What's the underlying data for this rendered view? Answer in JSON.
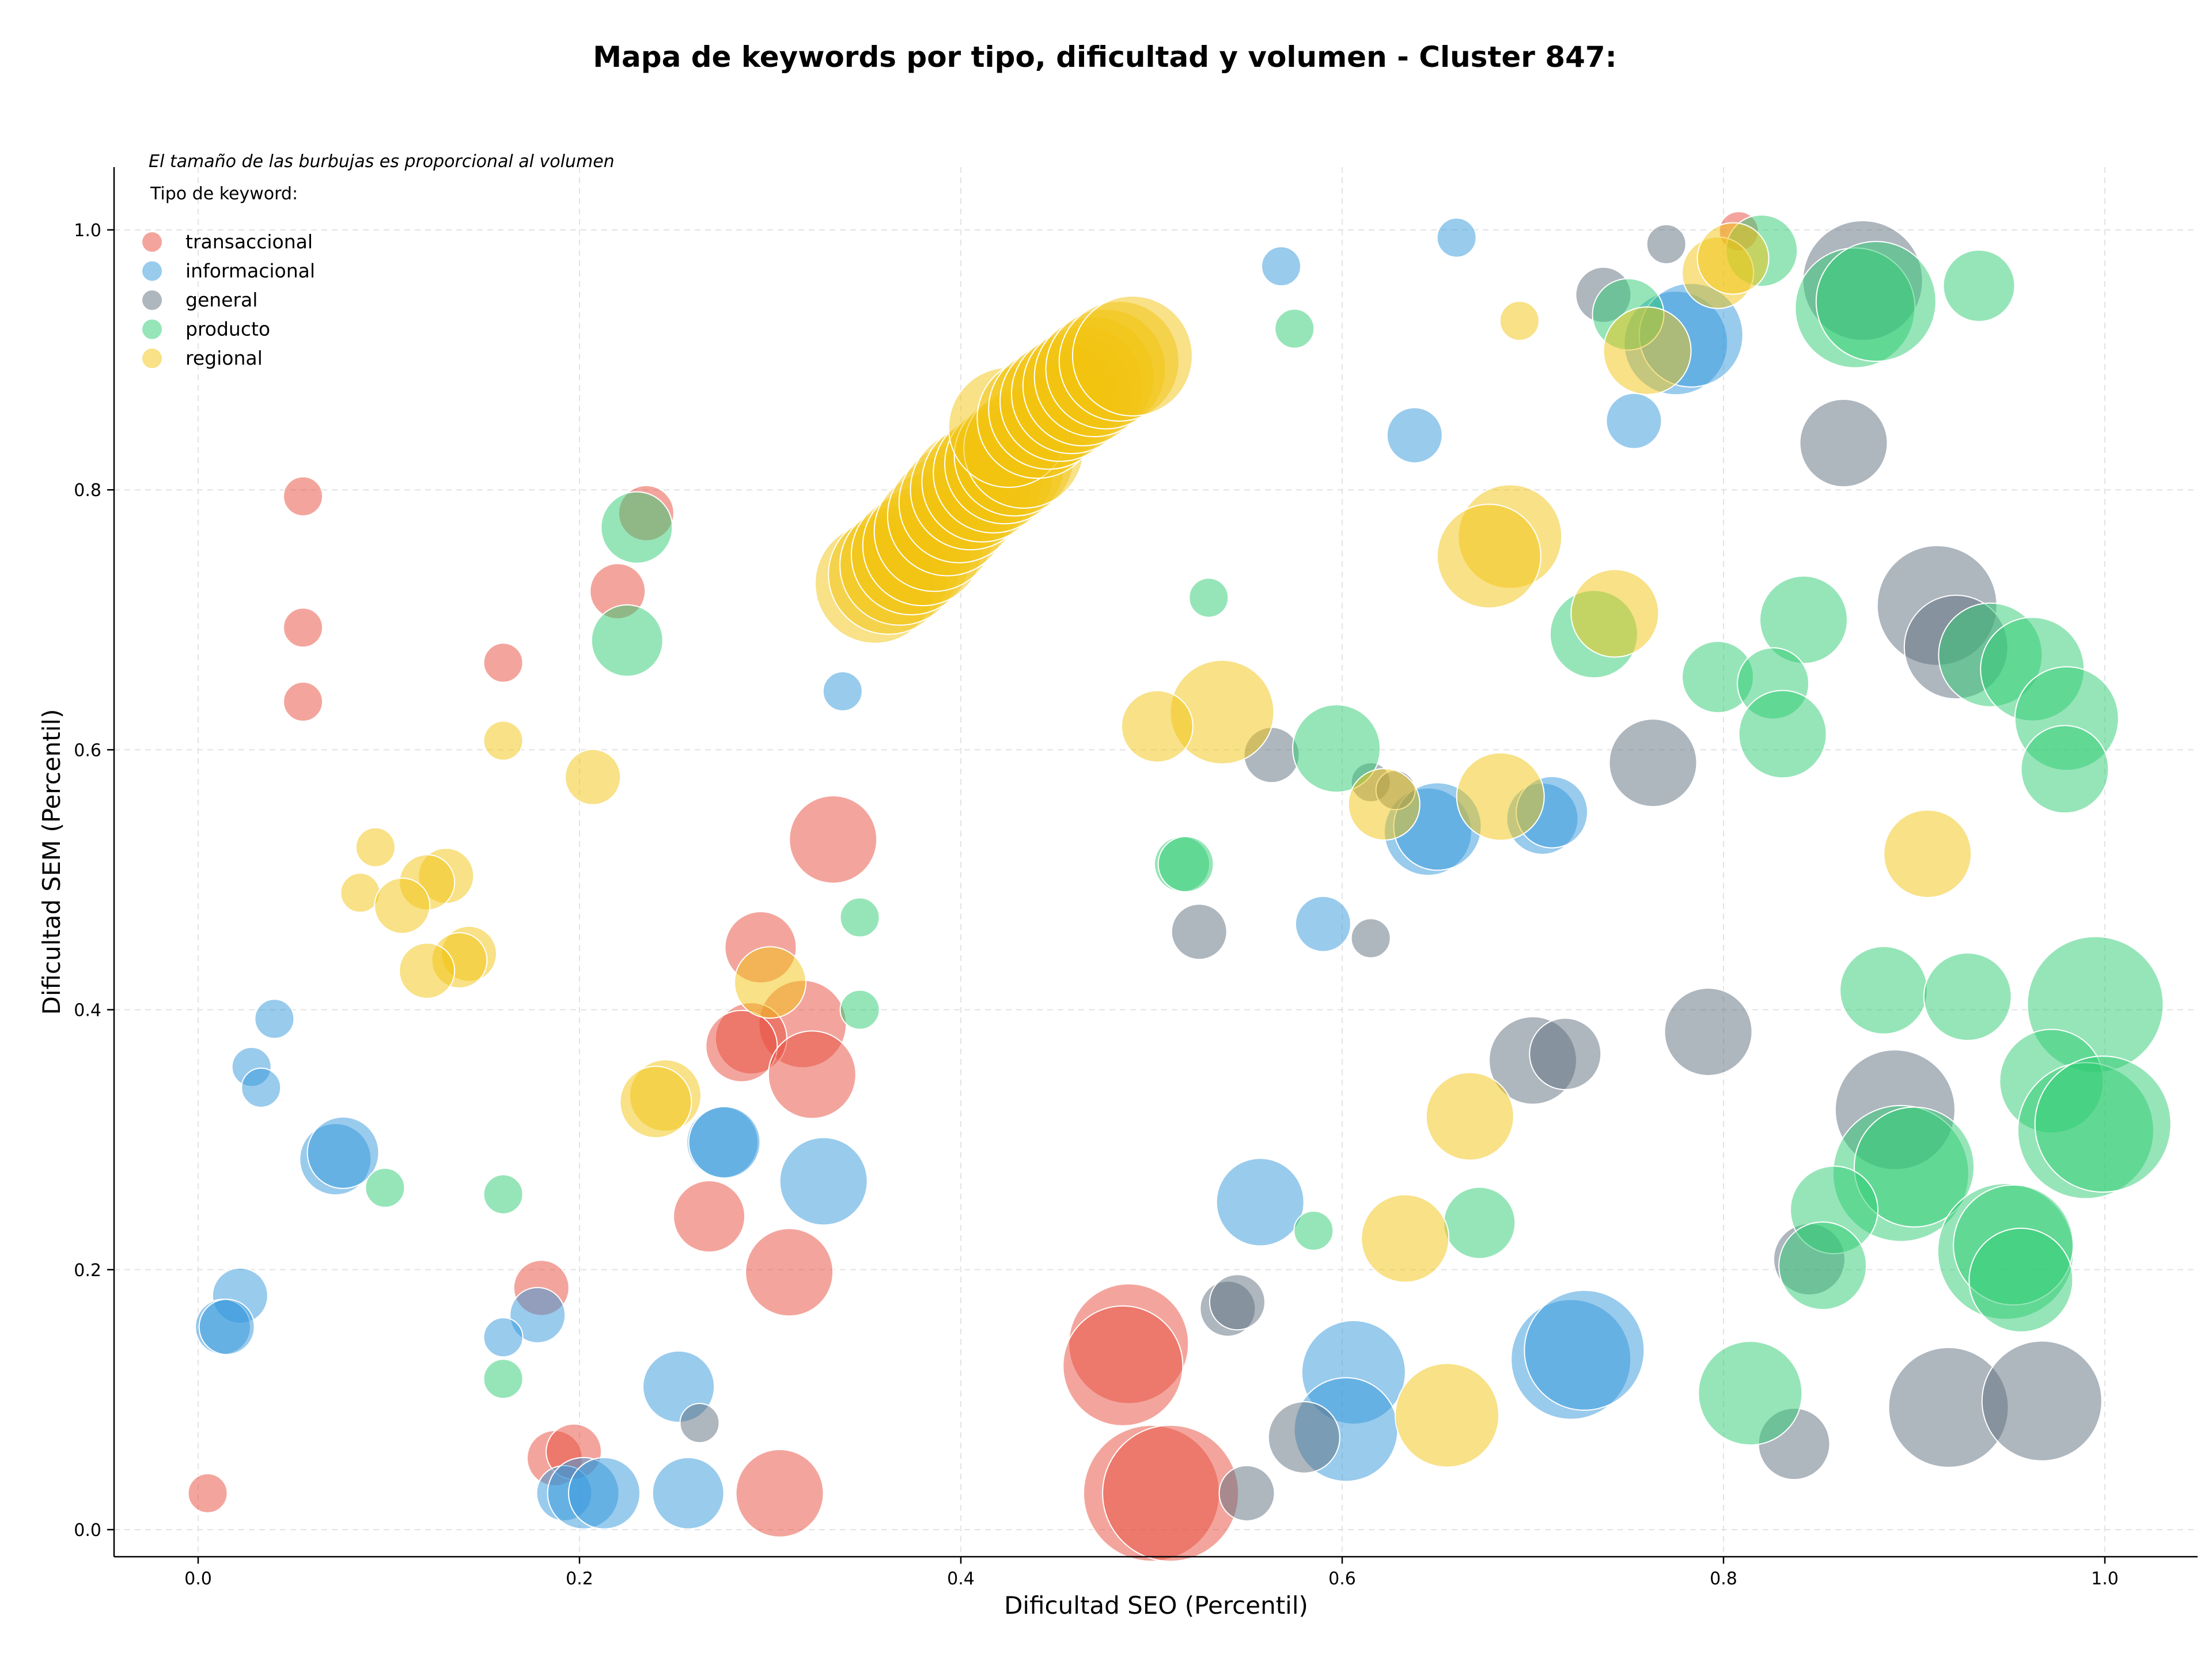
{
  "chart_data": {
    "type": "scatter",
    "title": "Mapa de keywords por tipo, dificultad y volumen - Cluster 847:",
    "xlabel": "Dificultad SEO (Percentil)",
    "ylabel": "Dificultad SEM (Percentil)",
    "xlim": [
      -0.04,
      1.05
    ],
    "ylim": [
      -0.02,
      1.05
    ],
    "xticks": [
      0.0,
      0.2,
      0.4,
      0.6,
      0.8,
      1.0
    ],
    "yticks": [
      0.0,
      0.2,
      0.4,
      0.6,
      0.8,
      1.0
    ],
    "xtick_labels": [
      "0.0",
      "0.2",
      "0.4",
      "0.6",
      "0.8",
      "1.0"
    ],
    "ytick_labels": [
      "0.0",
      "0.2",
      "0.4",
      "0.6",
      "0.8",
      "1.0"
    ],
    "grid": true,
    "note": "El tamaño de las burbujas es proporcional al volumen",
    "legend": {
      "title": "Tipo de keyword:",
      "placement": "top-left"
    },
    "series": [
      {
        "name": "transaccional",
        "color": "#e74c3c",
        "points": [
          {
            "x": 0.055,
            "y": 0.795,
            "size": 1
          },
          {
            "x": 0.055,
            "y": 0.694,
            "size": 1
          },
          {
            "x": 0.055,
            "y": 0.637,
            "size": 1
          },
          {
            "x": 0.16,
            "y": 0.667,
            "size": 1
          },
          {
            "x": 0.235,
            "y": 0.782,
            "size": 2
          },
          {
            "x": 0.22,
            "y": 0.722,
            "size": 2
          },
          {
            "x": 0.005,
            "y": 0.028,
            "size": 1
          },
          {
            "x": 0.18,
            "y": 0.186,
            "size": 2
          },
          {
            "x": 0.187,
            "y": 0.055,
            "size": 2
          },
          {
            "x": 0.197,
            "y": 0.06,
            "size": 2
          },
          {
            "x": 0.333,
            "y": 0.531,
            "size": 4
          },
          {
            "x": 0.295,
            "y": 0.448,
            "size": 3
          },
          {
            "x": 0.317,
            "y": 0.389,
            "size": 4
          },
          {
            "x": 0.29,
            "y": 0.378,
            "size": 3
          },
          {
            "x": 0.285,
            "y": 0.372,
            "size": 3
          },
          {
            "x": 0.322,
            "y": 0.35,
            "size": 4
          },
          {
            "x": 0.268,
            "y": 0.241,
            "size": 3
          },
          {
            "x": 0.31,
            "y": 0.198,
            "size": 4
          },
          {
            "x": 0.305,
            "y": 0.028,
            "size": 4
          },
          {
            "x": 0.488,
            "y": 0.143,
            "size": 6
          },
          {
            "x": 0.485,
            "y": 0.126,
            "size": 6
          },
          {
            "x": 0.5,
            "y": 0.028,
            "size": 7
          },
          {
            "x": 0.51,
            "y": 0.028,
            "size": 7
          },
          {
            "x": 0.808,
            "y": 0.999,
            "size": 1
          }
        ]
      },
      {
        "name": "informacional",
        "color": "#3498db",
        "points": [
          {
            "x": 0.568,
            "y": 0.972,
            "size": 1
          },
          {
            "x": 0.66,
            "y": 0.994,
            "size": 1
          },
          {
            "x": 0.638,
            "y": 0.842,
            "size": 2
          },
          {
            "x": 0.753,
            "y": 0.853,
            "size": 2
          },
          {
            "x": 0.775,
            "y": 0.913,
            "size": 5
          },
          {
            "x": 0.783,
            "y": 0.919,
            "size": 5
          },
          {
            "x": 0.338,
            "y": 0.645,
            "size": 1
          },
          {
            "x": 0.04,
            "y": 0.393,
            "size": 1
          },
          {
            "x": 0.028,
            "y": 0.356,
            "size": 1
          },
          {
            "x": 0.033,
            "y": 0.34,
            "size": 1
          },
          {
            "x": 0.072,
            "y": 0.285,
            "size": 3
          },
          {
            "x": 0.076,
            "y": 0.29,
            "size": 3
          },
          {
            "x": 0.022,
            "y": 0.18,
            "size": 2
          },
          {
            "x": 0.013,
            "y": 0.156,
            "size": 2
          },
          {
            "x": 0.015,
            "y": 0.156,
            "size": 2
          },
          {
            "x": 0.178,
            "y": 0.165,
            "size": 2
          },
          {
            "x": 0.16,
            "y": 0.148,
            "size": 1
          },
          {
            "x": 0.275,
            "y": 0.298,
            "size": 3
          },
          {
            "x": 0.276,
            "y": 0.298,
            "size": 3
          },
          {
            "x": 0.328,
            "y": 0.268,
            "size": 4
          },
          {
            "x": 0.252,
            "y": 0.11,
            "size": 3
          },
          {
            "x": 0.192,
            "y": 0.028,
            "size": 2
          },
          {
            "x": 0.202,
            "y": 0.028,
            "size": 3
          },
          {
            "x": 0.213,
            "y": 0.028,
            "size": 3
          },
          {
            "x": 0.257,
            "y": 0.028,
            "size": 3
          },
          {
            "x": 0.59,
            "y": 0.466,
            "size": 2
          },
          {
            "x": 0.557,
            "y": 0.252,
            "size": 4
          },
          {
            "x": 0.606,
            "y": 0.121,
            "size": 5
          },
          {
            "x": 0.602,
            "y": 0.077,
            "size": 5
          },
          {
            "x": 0.645,
            "y": 0.537,
            "size": 4
          },
          {
            "x": 0.65,
            "y": 0.541,
            "size": 4
          },
          {
            "x": 0.705,
            "y": 0.547,
            "size": 3
          },
          {
            "x": 0.71,
            "y": 0.552,
            "size": 3
          },
          {
            "x": 0.72,
            "y": 0.131,
            "size": 6
          },
          {
            "x": 0.727,
            "y": 0.138,
            "size": 6
          }
        ]
      },
      {
        "name": "general",
        "color": "#5d6d7e",
        "points": [
          {
            "x": 0.77,
            "y": 0.989,
            "size": 1
          },
          {
            "x": 0.737,
            "y": 0.95,
            "size": 2
          },
          {
            "x": 0.873,
            "y": 0.961,
            "size": 6
          },
          {
            "x": 0.863,
            "y": 0.836,
            "size": 4
          },
          {
            "x": 0.912,
            "y": 0.711,
            "size": 6
          },
          {
            "x": 0.922,
            "y": 0.679,
            "size": 5
          },
          {
            "x": 0.763,
            "y": 0.59,
            "size": 4
          },
          {
            "x": 0.563,
            "y": 0.596,
            "size": 2
          },
          {
            "x": 0.615,
            "y": 0.575,
            "size": 1
          },
          {
            "x": 0.628,
            "y": 0.569,
            "size": 1
          },
          {
            "x": 0.525,
            "y": 0.46,
            "size": 2
          },
          {
            "x": 0.615,
            "y": 0.455,
            "size": 1
          },
          {
            "x": 0.7,
            "y": 0.361,
            "size": 4
          },
          {
            "x": 0.717,
            "y": 0.366,
            "size": 3
          },
          {
            "x": 0.792,
            "y": 0.383,
            "size": 4
          },
          {
            "x": 0.89,
            "y": 0.323,
            "size": 6
          },
          {
            "x": 0.845,
            "y": 0.208,
            "size": 3
          },
          {
            "x": 0.54,
            "y": 0.17,
            "size": 2
          },
          {
            "x": 0.545,
            "y": 0.175,
            "size": 2
          },
          {
            "x": 0.263,
            "y": 0.082,
            "size": 1
          },
          {
            "x": 0.58,
            "y": 0.071,
            "size": 3
          },
          {
            "x": 0.55,
            "y": 0.028,
            "size": 2
          },
          {
            "x": 0.837,
            "y": 0.066,
            "size": 3
          },
          {
            "x": 0.918,
            "y": 0.094,
            "size": 6
          },
          {
            "x": 0.967,
            "y": 0.099,
            "size": 6
          }
        ]
      },
      {
        "name": "producto",
        "color": "#2ecc71",
        "points": [
          {
            "x": 0.82,
            "y": 0.984,
            "size": 3
          },
          {
            "x": 0.75,
            "y": 0.935,
            "size": 3
          },
          {
            "x": 0.869,
            "y": 0.94,
            "size": 6
          },
          {
            "x": 0.88,
            "y": 0.945,
            "size": 6
          },
          {
            "x": 0.934,
            "y": 0.957,
            "size": 3
          },
          {
            "x": 0.575,
            "y": 0.924,
            "size": 1
          },
          {
            "x": 0.23,
            "y": 0.771,
            "size": 3
          },
          {
            "x": 0.225,
            "y": 0.684,
            "size": 3
          },
          {
            "x": 0.53,
            "y": 0.717,
            "size": 1
          },
          {
            "x": 0.732,
            "y": 0.689,
            "size": 4
          },
          {
            "x": 0.842,
            "y": 0.7,
            "size": 4
          },
          {
            "x": 0.797,
            "y": 0.656,
            "size": 3
          },
          {
            "x": 0.826,
            "y": 0.651,
            "size": 3
          },
          {
            "x": 0.831,
            "y": 0.612,
            "size": 4
          },
          {
            "x": 0.94,
            "y": 0.673,
            "size": 5
          },
          {
            "x": 0.962,
            "y": 0.662,
            "size": 5
          },
          {
            "x": 0.98,
            "y": 0.624,
            "size": 5
          },
          {
            "x": 0.979,
            "y": 0.585,
            "size": 4
          },
          {
            "x": 0.597,
            "y": 0.601,
            "size": 4
          },
          {
            "x": 0.516,
            "y": 0.512,
            "size": 2
          },
          {
            "x": 0.518,
            "y": 0.512,
            "size": 2
          },
          {
            "x": 0.347,
            "y": 0.471,
            "size": 1
          },
          {
            "x": 0.347,
            "y": 0.4,
            "size": 1
          },
          {
            "x": 0.098,
            "y": 0.263,
            "size": 1
          },
          {
            "x": 0.16,
            "y": 0.258,
            "size": 1
          },
          {
            "x": 0.16,
            "y": 0.116,
            "size": 1
          },
          {
            "x": 0.585,
            "y": 0.23,
            "size": 1
          },
          {
            "x": 0.672,
            "y": 0.236,
            "size": 3
          },
          {
            "x": 0.884,
            "y": 0.415,
            "size": 4
          },
          {
            "x": 0.928,
            "y": 0.41,
            "size": 4
          },
          {
            "x": 0.995,
            "y": 0.404,
            "size": 7
          },
          {
            "x": 0.972,
            "y": 0.345,
            "size": 5
          },
          {
            "x": 0.99,
            "y": 0.307,
            "size": 7
          },
          {
            "x": 0.999,
            "y": 0.312,
            "size": 7
          },
          {
            "x": 0.893,
            "y": 0.274,
            "size": 7
          },
          {
            "x": 0.9,
            "y": 0.279,
            "size": 6
          },
          {
            "x": 0.858,
            "y": 0.246,
            "size": 4
          },
          {
            "x": 0.852,
            "y": 0.203,
            "size": 4
          },
          {
            "x": 0.948,
            "y": 0.214,
            "size": 7
          },
          {
            "x": 0.952,
            "y": 0.219,
            "size": 6
          },
          {
            "x": 0.956,
            "y": 0.192,
            "size": 5
          },
          {
            "x": 0.814,
            "y": 0.105,
            "size": 5
          }
        ]
      },
      {
        "name": "regional",
        "color": "#f1c40f",
        "points": [
          {
            "x": 0.693,
            "y": 0.93,
            "size": 1
          },
          {
            "x": 0.797,
            "y": 0.967,
            "size": 3
          },
          {
            "x": 0.805,
            "y": 0.978,
            "size": 3
          },
          {
            "x": 0.76,
            "y": 0.907,
            "size": 4
          },
          {
            "x": 0.688,
            "y": 0.764,
            "size": 5
          },
          {
            "x": 0.677,
            "y": 0.749,
            "size": 5
          },
          {
            "x": 0.743,
            "y": 0.705,
            "size": 4
          },
          {
            "x": 0.537,
            "y": 0.629,
            "size": 5
          },
          {
            "x": 0.503,
            "y": 0.618,
            "size": 3
          },
          {
            "x": 0.16,
            "y": 0.607,
            "size": 1
          },
          {
            "x": 0.207,
            "y": 0.579,
            "size": 2
          },
          {
            "x": 0.093,
            "y": 0.525,
            "size": 1
          },
          {
            "x": 0.085,
            "y": 0.49,
            "size": 1
          },
          {
            "x": 0.13,
            "y": 0.503,
            "size": 2
          },
          {
            "x": 0.12,
            "y": 0.498,
            "size": 2
          },
          {
            "x": 0.107,
            "y": 0.48,
            "size": 2
          },
          {
            "x": 0.142,
            "y": 0.443,
            "size": 2
          },
          {
            "x": 0.137,
            "y": 0.438,
            "size": 2
          },
          {
            "x": 0.12,
            "y": 0.43,
            "size": 2
          },
          {
            "x": 0.3,
            "y": 0.421,
            "size": 3
          },
          {
            "x": 0.245,
            "y": 0.334,
            "size": 3
          },
          {
            "x": 0.24,
            "y": 0.329,
            "size": 3
          },
          {
            "x": 0.622,
            "y": 0.558,
            "size": 3
          },
          {
            "x": 0.683,
            "y": 0.564,
            "size": 4
          },
          {
            "x": 0.907,
            "y": 0.52,
            "size": 4
          },
          {
            "x": 0.667,
            "y": 0.318,
            "size": 4
          },
          {
            "x": 0.633,
            "y": 0.224,
            "size": 4
          },
          {
            "x": 0.655,
            "y": 0.088,
            "size": 5
          },
          {
            "x": 0.355,
            "y": 0.728,
            "size": 6
          },
          {
            "x": 0.362,
            "y": 0.735,
            "size": 6
          },
          {
            "x": 0.368,
            "y": 0.742,
            "size": 6
          },
          {
            "x": 0.374,
            "y": 0.75,
            "size": 6
          },
          {
            "x": 0.38,
            "y": 0.757,
            "size": 6
          },
          {
            "x": 0.386,
            "y": 0.768,
            "size": 6
          },
          {
            "x": 0.393,
            "y": 0.78,
            "size": 6
          },
          {
            "x": 0.399,
            "y": 0.79,
            "size": 6
          },
          {
            "x": 0.405,
            "y": 0.8,
            "size": 6
          },
          {
            "x": 0.411,
            "y": 0.806,
            "size": 6
          },
          {
            "x": 0.417,
            "y": 0.813,
            "size": 6
          },
          {
            "x": 0.423,
            "y": 0.82,
            "size": 6
          },
          {
            "x": 0.428,
            "y": 0.826,
            "size": 6
          },
          {
            "x": 0.433,
            "y": 0.832,
            "size": 6
          },
          {
            "x": 0.425,
            "y": 0.848,
            "size": 6
          },
          {
            "x": 0.44,
            "y": 0.855,
            "size": 6
          },
          {
            "x": 0.446,
            "y": 0.862,
            "size": 6
          },
          {
            "x": 0.452,
            "y": 0.868,
            "size": 6
          },
          {
            "x": 0.458,
            "y": 0.874,
            "size": 6
          },
          {
            "x": 0.464,
            "y": 0.88,
            "size": 6
          },
          {
            "x": 0.47,
            "y": 0.887,
            "size": 6
          },
          {
            "x": 0.476,
            "y": 0.893,
            "size": 6
          },
          {
            "x": 0.483,
            "y": 0.899,
            "size": 6
          },
          {
            "x": 0.49,
            "y": 0.903,
            "size": 6
          }
        ]
      }
    ]
  }
}
